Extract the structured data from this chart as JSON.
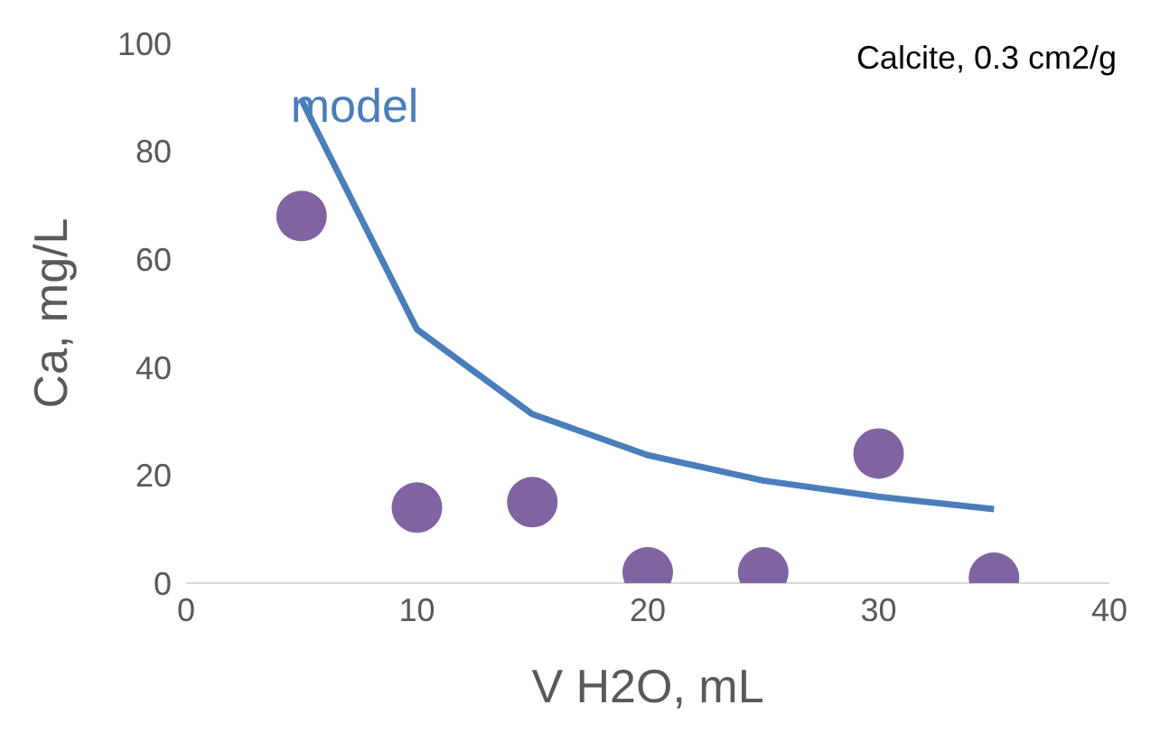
{
  "chart_data": {
    "type": "scatter",
    "xlabel": "V H2O, mL",
    "ylabel": "Ca, mg/L",
    "annotations": [
      "Calcite, 0.3 cm2/g"
    ],
    "xlim": [
      0,
      40
    ],
    "xticks": [
      0,
      10,
      20,
      30,
      40
    ],
    "ylim": [
      0,
      100
    ],
    "yticks": [
      0,
      20,
      40,
      60,
      80,
      100
    ],
    "grid": false,
    "legend": false,
    "series": [
      {
        "type": "scatter",
        "color": "#8064a2",
        "marker": "circle",
        "x": [
          5,
          10,
          15,
          20,
          25,
          30,
          35
        ],
        "values": [
          68,
          14,
          15,
          2,
          2,
          24,
          1
        ]
      },
      {
        "type": "line",
        "name": "model",
        "color": "#4a7ebb",
        "marker": "none",
        "line_style": "solid",
        "x": [
          5,
          10,
          15,
          20,
          25,
          30,
          35
        ],
        "values": [
          89.5,
          47,
          31.3,
          23.7,
          19,
          16,
          13.7
        ]
      }
    ]
  }
}
